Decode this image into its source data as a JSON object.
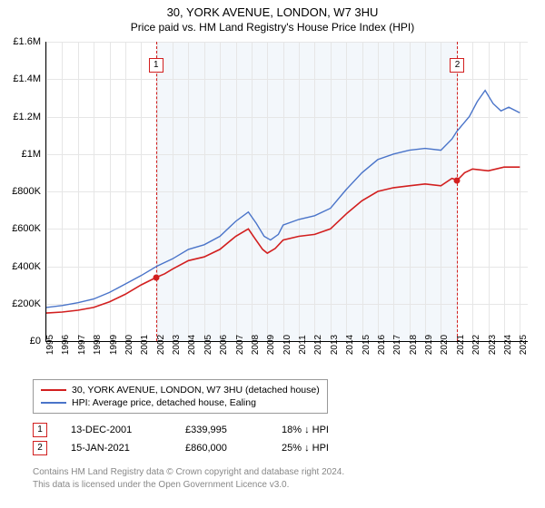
{
  "title": "30, YORK AVENUE, LONDON, W7 3HU",
  "subtitle": "Price paid vs. HM Land Registry's House Price Index (HPI)",
  "chart": {
    "type": "line",
    "background_color": "#ffffff",
    "grid_color": "#e6e6e6",
    "shaded_region_color": "#eaf0f8",
    "x_years": [
      1995,
      1996,
      1997,
      1998,
      1999,
      2000,
      2001,
      2002,
      2003,
      2004,
      2005,
      2006,
      2007,
      2008,
      2009,
      2010,
      2011,
      2012,
      2013,
      2014,
      2015,
      2016,
      2017,
      2018,
      2019,
      2020,
      2021,
      2022,
      2023,
      2024,
      2025
    ],
    "y_ticks": [
      0,
      200000,
      400000,
      600000,
      800000,
      1000000,
      1200000,
      1400000,
      1600000
    ],
    "y_tick_labels": [
      "£0",
      "£200K",
      "£400K",
      "£600K",
      "£800K",
      "£1M",
      "£1.2M",
      "£1.4M",
      "£1.6M"
    ],
    "ylim": [
      0,
      1600000
    ],
    "xlim": [
      1995,
      2025.5
    ],
    "shaded_region": {
      "start": 2001.95,
      "end": 2021.04
    },
    "series": [
      {
        "name": "price_paid",
        "label": "30, YORK AVENUE, LONDON, W7 3HU (detached house)",
        "color": "#d21f1f",
        "line_width": 1.6,
        "data": [
          [
            1995,
            150000
          ],
          [
            1996,
            155000
          ],
          [
            1997,
            165000
          ],
          [
            1998,
            180000
          ],
          [
            1999,
            210000
          ],
          [
            2000,
            250000
          ],
          [
            2001,
            300000
          ],
          [
            2001.95,
            339995
          ],
          [
            2002.5,
            360000
          ],
          [
            2003,
            385000
          ],
          [
            2004,
            430000
          ],
          [
            2005,
            450000
          ],
          [
            2006,
            490000
          ],
          [
            2007,
            560000
          ],
          [
            2007.8,
            600000
          ],
          [
            2008.2,
            550000
          ],
          [
            2008.7,
            490000
          ],
          [
            2009,
            470000
          ],
          [
            2009.5,
            495000
          ],
          [
            2010,
            540000
          ],
          [
            2011,
            560000
          ],
          [
            2012,
            570000
          ],
          [
            2013,
            600000
          ],
          [
            2014,
            680000
          ],
          [
            2015,
            750000
          ],
          [
            2016,
            800000
          ],
          [
            2017,
            820000
          ],
          [
            2018,
            830000
          ],
          [
            2019,
            840000
          ],
          [
            2020,
            830000
          ],
          [
            2020.7,
            870000
          ],
          [
            2021.04,
            860000
          ],
          [
            2021.5,
            900000
          ],
          [
            2022,
            920000
          ],
          [
            2023,
            910000
          ],
          [
            2024,
            930000
          ],
          [
            2025,
            930000
          ]
        ]
      },
      {
        "name": "hpi",
        "label": "HPI: Average price, detached house, Ealing",
        "color": "#4a74c9",
        "line_width": 1.4,
        "data": [
          [
            1995,
            180000
          ],
          [
            1996,
            190000
          ],
          [
            1997,
            205000
          ],
          [
            1998,
            225000
          ],
          [
            1999,
            260000
          ],
          [
            2000,
            305000
          ],
          [
            2001,
            350000
          ],
          [
            2002,
            400000
          ],
          [
            2003,
            440000
          ],
          [
            2004,
            490000
          ],
          [
            2005,
            515000
          ],
          [
            2006,
            560000
          ],
          [
            2007,
            640000
          ],
          [
            2007.8,
            690000
          ],
          [
            2008.3,
            630000
          ],
          [
            2008.8,
            560000
          ],
          [
            2009.2,
            540000
          ],
          [
            2009.7,
            570000
          ],
          [
            2010,
            620000
          ],
          [
            2011,
            650000
          ],
          [
            2012,
            670000
          ],
          [
            2013,
            710000
          ],
          [
            2014,
            810000
          ],
          [
            2015,
            900000
          ],
          [
            2016,
            970000
          ],
          [
            2017,
            1000000
          ],
          [
            2018,
            1020000
          ],
          [
            2019,
            1030000
          ],
          [
            2020,
            1020000
          ],
          [
            2020.7,
            1080000
          ],
          [
            2021,
            1120000
          ],
          [
            2021.8,
            1200000
          ],
          [
            2022.3,
            1280000
          ],
          [
            2022.8,
            1340000
          ],
          [
            2023.3,
            1270000
          ],
          [
            2023.8,
            1230000
          ],
          [
            2024.3,
            1250000
          ],
          [
            2025,
            1220000
          ]
        ]
      }
    ],
    "sale_markers": [
      {
        "n": "1",
        "year": 2001.95,
        "value": 339995,
        "color": "#d21f1f",
        "box_top": 18
      },
      {
        "n": "2",
        "year": 2021.04,
        "value": 860000,
        "color": "#d21f1f",
        "box_top": 18
      }
    ],
    "axis_fontsize": 11,
    "tick_fontsize": 10
  },
  "legend": {
    "items": [
      {
        "color": "#d21f1f",
        "label": "30, YORK AVENUE, LONDON, W7 3HU (detached house)"
      },
      {
        "color": "#4a74c9",
        "label": "HPI: Average price, detached house, Ealing"
      }
    ]
  },
  "sales": [
    {
      "n": "1",
      "color": "#d21f1f",
      "date": "13-DEC-2001",
      "price": "£339,995",
      "delta": "18% ↓ HPI"
    },
    {
      "n": "2",
      "color": "#d21f1f",
      "date": "15-JAN-2021",
      "price": "£860,000",
      "delta": "25% ↓ HPI"
    }
  ],
  "footer": {
    "line1": "Contains HM Land Registry data © Crown copyright and database right 2024.",
    "line2": "This data is licensed under the Open Government Licence v3.0."
  }
}
